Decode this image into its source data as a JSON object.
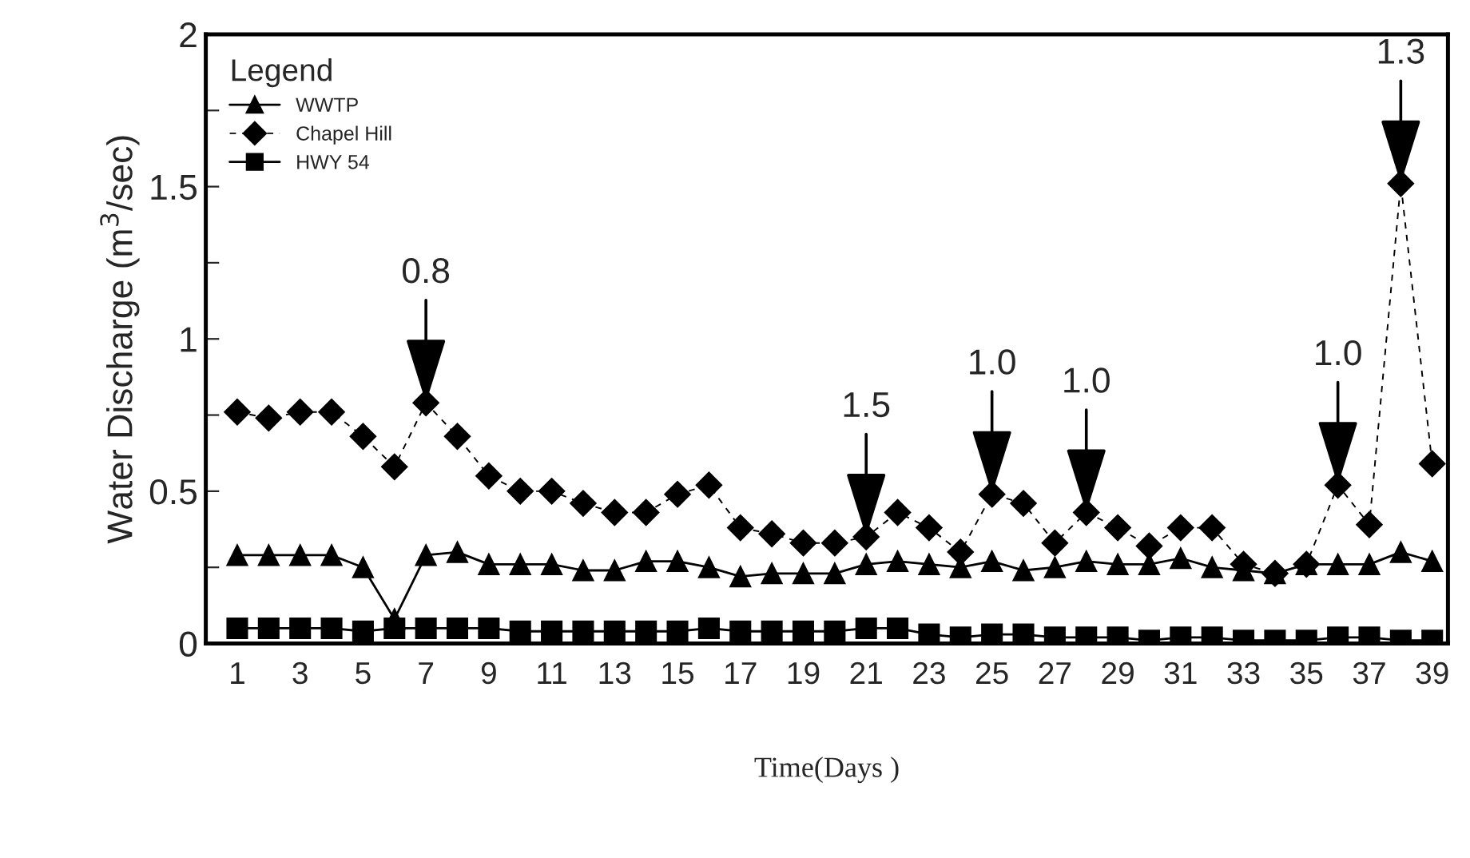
{
  "chart_data": {
    "type": "line",
    "xlabel": "Time(Days )",
    "ylabel": "Water Discharge (m$^{3}$/sec)",
    "legend_title": "Legend",
    "legend": "top left",
    "grid": false,
    "x": [
      1,
      2,
      3,
      4,
      5,
      6,
      7,
      8,
      9,
      10,
      11,
      12,
      13,
      14,
      15,
      16,
      17,
      18,
      19,
      20,
      21,
      22,
      23,
      24,
      25,
      26,
      27,
      28,
      29,
      30,
      31,
      32,
      33,
      34,
      35,
      36,
      37,
      38,
      39
    ],
    "xlim": [
      0,
      39.5
    ],
    "xticks": [
      1,
      3,
      5,
      7,
      9,
      11,
      13,
      15,
      17,
      19,
      21,
      23,
      25,
      27,
      29,
      31,
      33,
      35,
      37,
      39
    ],
    "ylim": [
      0,
      2
    ],
    "yticks": [
      0,
      {
        "value": 0.25,
        "label": null
      },
      0.5,
      {
        "value": 0.75,
        "label": null
      },
      1,
      {
        "value": 1.25,
        "label": null
      },
      1.5,
      {
        "value": 1.75,
        "label": null
      },
      2
    ],
    "series": [
      {
        "name": "WWTP",
        "color": "#000000",
        "marker": "triangle",
        "line_style": "solid",
        "values": [
          0.29,
          0.29,
          0.29,
          0.29,
          0.25,
          0.08,
          0.29,
          0.3,
          0.26,
          0.26,
          0.26,
          0.24,
          0.24,
          0.27,
          0.27,
          0.25,
          0.22,
          0.23,
          0.23,
          0.23,
          0.26,
          0.27,
          0.26,
          0.25,
          0.27,
          0.24,
          0.25,
          0.27,
          0.26,
          0.26,
          0.28,
          0.25,
          0.24,
          0.23,
          0.26,
          0.26,
          0.26,
          0.3,
          0.27
        ]
      },
      {
        "name": "Chapel Hill",
        "color": "#000000",
        "marker": "diamond",
        "line_style": "dashed",
        "values": [
          0.76,
          0.74,
          0.76,
          0.76,
          0.68,
          0.58,
          0.79,
          0.68,
          0.55,
          0.5,
          0.5,
          0.46,
          0.43,
          0.43,
          0.49,
          0.52,
          0.38,
          0.36,
          0.33,
          0.33,
          0.35,
          0.43,
          0.38,
          0.3,
          0.49,
          0.46,
          0.33,
          0.43,
          0.38,
          0.32,
          0.38,
          0.38,
          0.26,
          0.23,
          0.26,
          0.52,
          0.39,
          1.51,
          0.59
        ]
      },
      {
        "name": "HWY 54",
        "color": "#000000",
        "marker": "square",
        "line_style": "solid",
        "values": [
          0.05,
          0.05,
          0.05,
          0.05,
          0.04,
          0.05,
          0.05,
          0.05,
          0.05,
          0.04,
          0.04,
          0.04,
          0.04,
          0.04,
          0.04,
          0.05,
          0.04,
          0.04,
          0.04,
          0.04,
          0.05,
          0.05,
          0.03,
          0.02,
          0.03,
          0.03,
          0.02,
          0.02,
          0.02,
          0.01,
          0.02,
          0.02,
          0.01,
          0.01,
          0.01,
          0.02,
          0.02,
          0.01,
          0.01
        ]
      }
    ],
    "annotations": [
      {
        "text": "0.8",
        "x": 7,
        "y": 0.79
      },
      {
        "text": "1.5",
        "x": 21,
        "y": 0.35
      },
      {
        "text": "1.0",
        "x": 25,
        "y": 0.49
      },
      {
        "text": "1.0",
        "x": 28,
        "y": 0.43
      },
      {
        "text": "1.0",
        "x": 36,
        "y": 0.52
      },
      {
        "text": "1.3",
        "x": 38,
        "y": 1.51
      }
    ]
  }
}
